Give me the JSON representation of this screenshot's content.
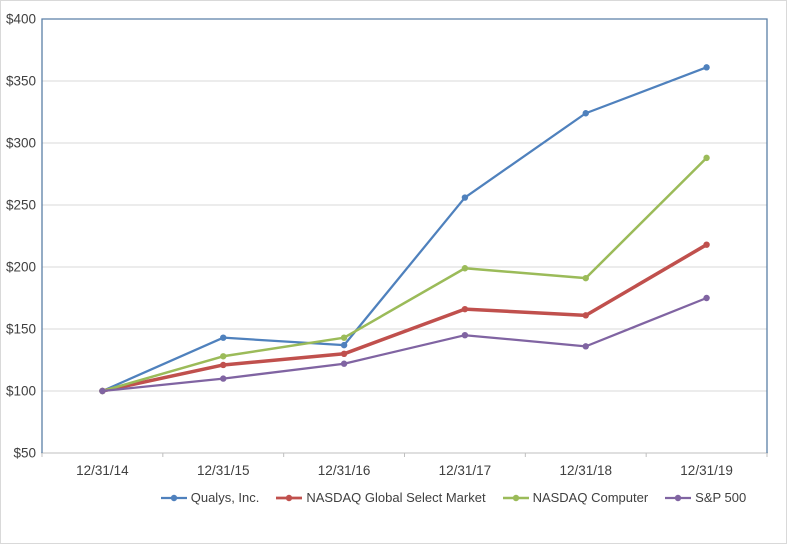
{
  "chart_data": {
    "type": "line",
    "title": "",
    "x_categories": [
      "12/31/14",
      "12/31/15",
      "12/31/16",
      "12/31/17",
      "12/31/18",
      "12/31/19"
    ],
    "y_axis": {
      "min": 50,
      "max": 400,
      "step": 50,
      "tick_prefix": "$",
      "tick_labels": [
        "$50",
        "$100",
        "$150",
        "$200",
        "$250",
        "$300",
        "$350",
        "$400"
      ]
    },
    "series": [
      {
        "name": "Qualys, Inc.",
        "color": "#4F81BD",
        "line_width": 2.25,
        "marker": "circle",
        "values": [
          100,
          143,
          137,
          256,
          324,
          361
        ]
      },
      {
        "name": "NASDAQ Global Select Market",
        "color": "#C0504D",
        "line_width": 3.5,
        "marker": "circle",
        "values": [
          100,
          121,
          130,
          166,
          161,
          218
        ]
      },
      {
        "name": "NASDAQ Computer",
        "color": "#9BBB59",
        "line_width": 2.5,
        "marker": "circle",
        "values": [
          100,
          128,
          143,
          199,
          191,
          288
        ]
      },
      {
        "name": "S&P 500",
        "color": "#8064A2",
        "line_width": 2.25,
        "marker": "circle",
        "values": [
          100,
          110,
          122,
          145,
          136,
          175
        ]
      }
    ],
    "legend_position": "bottom",
    "grid": true,
    "grid_color": "#D9D9D9",
    "axis_line_color": "#BFBFBF",
    "plot_border_color": "#5B7FA6",
    "axis_text_color": "#404040"
  }
}
